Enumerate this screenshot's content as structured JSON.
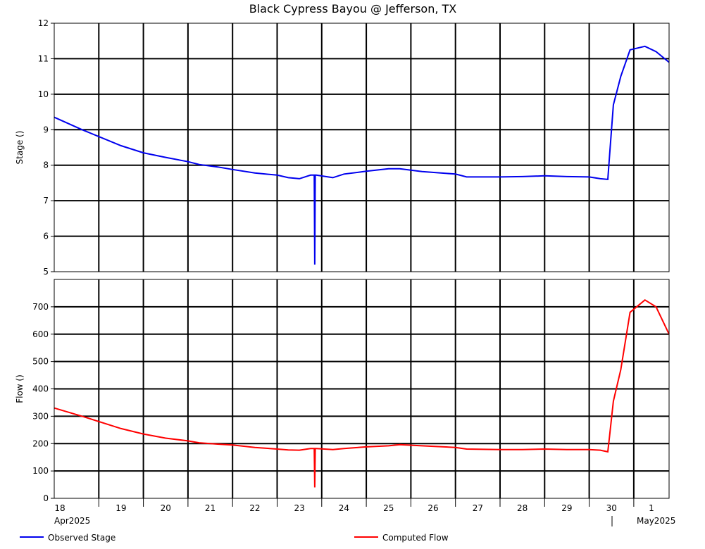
{
  "chart_data": [
    {
      "type": "line",
      "title": "Black Cypress Bayou @ Jefferson, TX",
      "ylabel": "Stage ()",
      "ylim": [
        5,
        12
      ],
      "yticks": [
        5,
        6,
        7,
        8,
        9,
        10,
        11,
        12
      ],
      "xlim": [
        "2025-04-18 00:00",
        "2025-05-01 19:00"
      ],
      "grid": true,
      "series": [
        {
          "name": "Observed Stage",
          "color": "#0000ee",
          "x": [
            "2025-04-18 00:00",
            "2025-04-18 15:00",
            "2025-04-19 12:00",
            "2025-04-20 00:00",
            "2025-04-20 12:00",
            "2025-04-21 00:00",
            "2025-04-21 06:00",
            "2025-04-21 16:00",
            "2025-04-22 00:00",
            "2025-04-22 12:00",
            "2025-04-23 00:00",
            "2025-04-23 06:00",
            "2025-04-23 12:00",
            "2025-04-23 18:00",
            "2025-04-23 20:00",
            "2025-04-23 20:15",
            "2025-04-23 20:30",
            "2025-04-23 21:00",
            "2025-04-24 06:00",
            "2025-04-24 12:00",
            "2025-04-25 00:00",
            "2025-04-25 12:00",
            "2025-04-25 18:00",
            "2025-04-26 06:00",
            "2025-04-27 00:00",
            "2025-04-27 06:00",
            "2025-04-28 00:00",
            "2025-04-28 12:00",
            "2025-04-29 00:00",
            "2025-04-29 12:00",
            "2025-04-30 00:00",
            "2025-04-30 06:00",
            "2025-04-30 10:00",
            "2025-04-30 11:00",
            "2025-04-30 13:00",
            "2025-04-30 17:00",
            "2025-04-30 22:00",
            "2025-05-01 06:00",
            "2025-05-01 12:00",
            "2025-05-01 19:00"
          ],
          "values": [
            9.35,
            9.0,
            8.55,
            8.35,
            8.22,
            8.1,
            8.02,
            7.95,
            7.88,
            7.78,
            7.72,
            7.65,
            7.62,
            7.72,
            7.72,
            5.2,
            7.72,
            7.72,
            7.65,
            7.75,
            7.83,
            7.9,
            7.9,
            7.82,
            7.75,
            7.67,
            7.67,
            7.68,
            7.7,
            7.68,
            7.67,
            7.62,
            7.6,
            8.3,
            9.7,
            10.5,
            11.25,
            11.35,
            11.2,
            10.9
          ]
        }
      ]
    },
    {
      "type": "line",
      "ylabel": "Flow ()",
      "ylim": [
        0,
        800
      ],
      "yticks": [
        0,
        100,
        200,
        300,
        400,
        500,
        600,
        700
      ],
      "xlim": [
        "2025-04-18 00:00",
        "2025-05-01 19:00"
      ],
      "xticks": [
        "18",
        "19",
        "20",
        "21",
        "22",
        "23",
        "24",
        "25",
        "26",
        "27",
        "28",
        "29",
        "30",
        "1"
      ],
      "xtick_groups": [
        "Apr2025",
        "May2025"
      ],
      "grid": true,
      "series": [
        {
          "name": "Computed Flow",
          "color": "#ff0000",
          "x": [
            "2025-04-18 00:00",
            "2025-04-18 15:00",
            "2025-04-19 12:00",
            "2025-04-20 00:00",
            "2025-04-20 12:00",
            "2025-04-21 00:00",
            "2025-04-21 06:00",
            "2025-04-21 16:00",
            "2025-04-22 00:00",
            "2025-04-22 12:00",
            "2025-04-23 00:00",
            "2025-04-23 06:00",
            "2025-04-23 12:00",
            "2025-04-23 18:00",
            "2025-04-23 20:00",
            "2025-04-23 20:15",
            "2025-04-23 20:30",
            "2025-04-23 21:00",
            "2025-04-24 06:00",
            "2025-04-24 12:00",
            "2025-04-25 00:00",
            "2025-04-25 12:00",
            "2025-04-25 18:00",
            "2025-04-26 06:00",
            "2025-04-27 00:00",
            "2025-04-27 06:00",
            "2025-04-28 00:00",
            "2025-04-28 12:00",
            "2025-04-29 00:00",
            "2025-04-29 12:00",
            "2025-04-30 00:00",
            "2025-04-30 06:00",
            "2025-04-30 10:00",
            "2025-04-30 11:00",
            "2025-04-30 13:00",
            "2025-04-30 17:00",
            "2025-04-30 22:00",
            "2025-05-01 06:00",
            "2025-05-01 12:00",
            "2025-05-01 19:00"
          ],
          "values": [
            330,
            300,
            255,
            235,
            220,
            210,
            203,
            198,
            195,
            186,
            180,
            177,
            176,
            182,
            182,
            40,
            182,
            182,
            178,
            182,
            188,
            192,
            196,
            192,
            186,
            180,
            178,
            178,
            180,
            178,
            178,
            176,
            170,
            230,
            355,
            470,
            680,
            725,
            700,
            600
          ]
        }
      ]
    }
  ]
}
